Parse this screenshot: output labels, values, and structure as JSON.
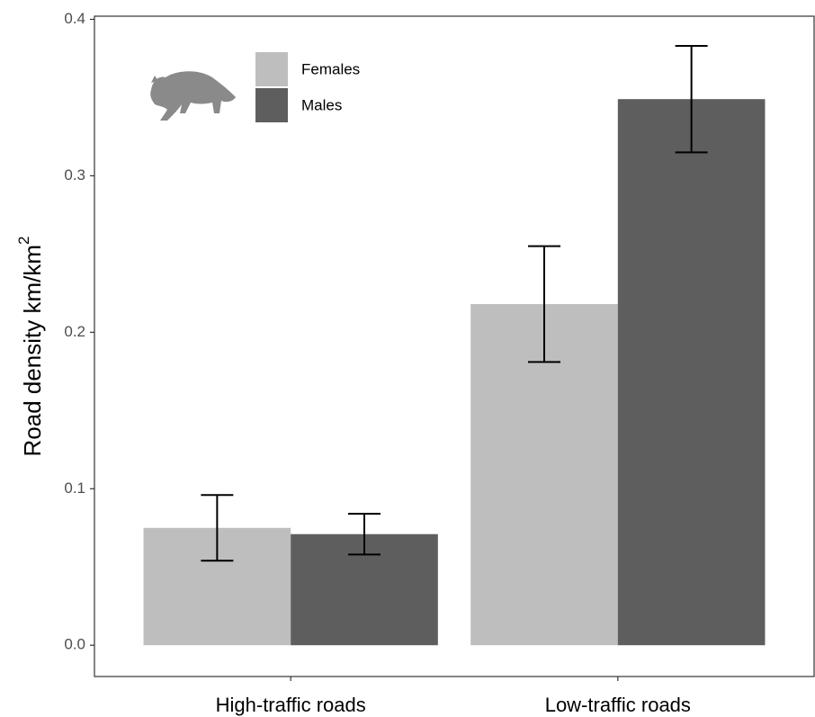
{
  "chart_data": {
    "type": "bar",
    "y_label": "Road density km/km",
    "y_label_superscript": "2",
    "categories": [
      "High-traffic roads",
      "Low-traffic roads"
    ],
    "series": [
      {
        "name": "Females",
        "color": "#bebebe",
        "values": [
          0.075,
          0.218
        ],
        "errors": [
          0.021,
          0.037
        ]
      },
      {
        "name": "Males",
        "color": "#5e5e5e",
        "values": [
          0.071,
          0.349
        ],
        "errors": [
          0.013,
          0.034
        ]
      }
    ],
    "ylim": [
      -0.02,
      0.402
    ],
    "yticks": [
      {
        "value": 0,
        "label": "0.0"
      },
      0.1,
      0.2,
      0.3,
      0.4
    ],
    "grid": false,
    "legend": "top-left"
  }
}
